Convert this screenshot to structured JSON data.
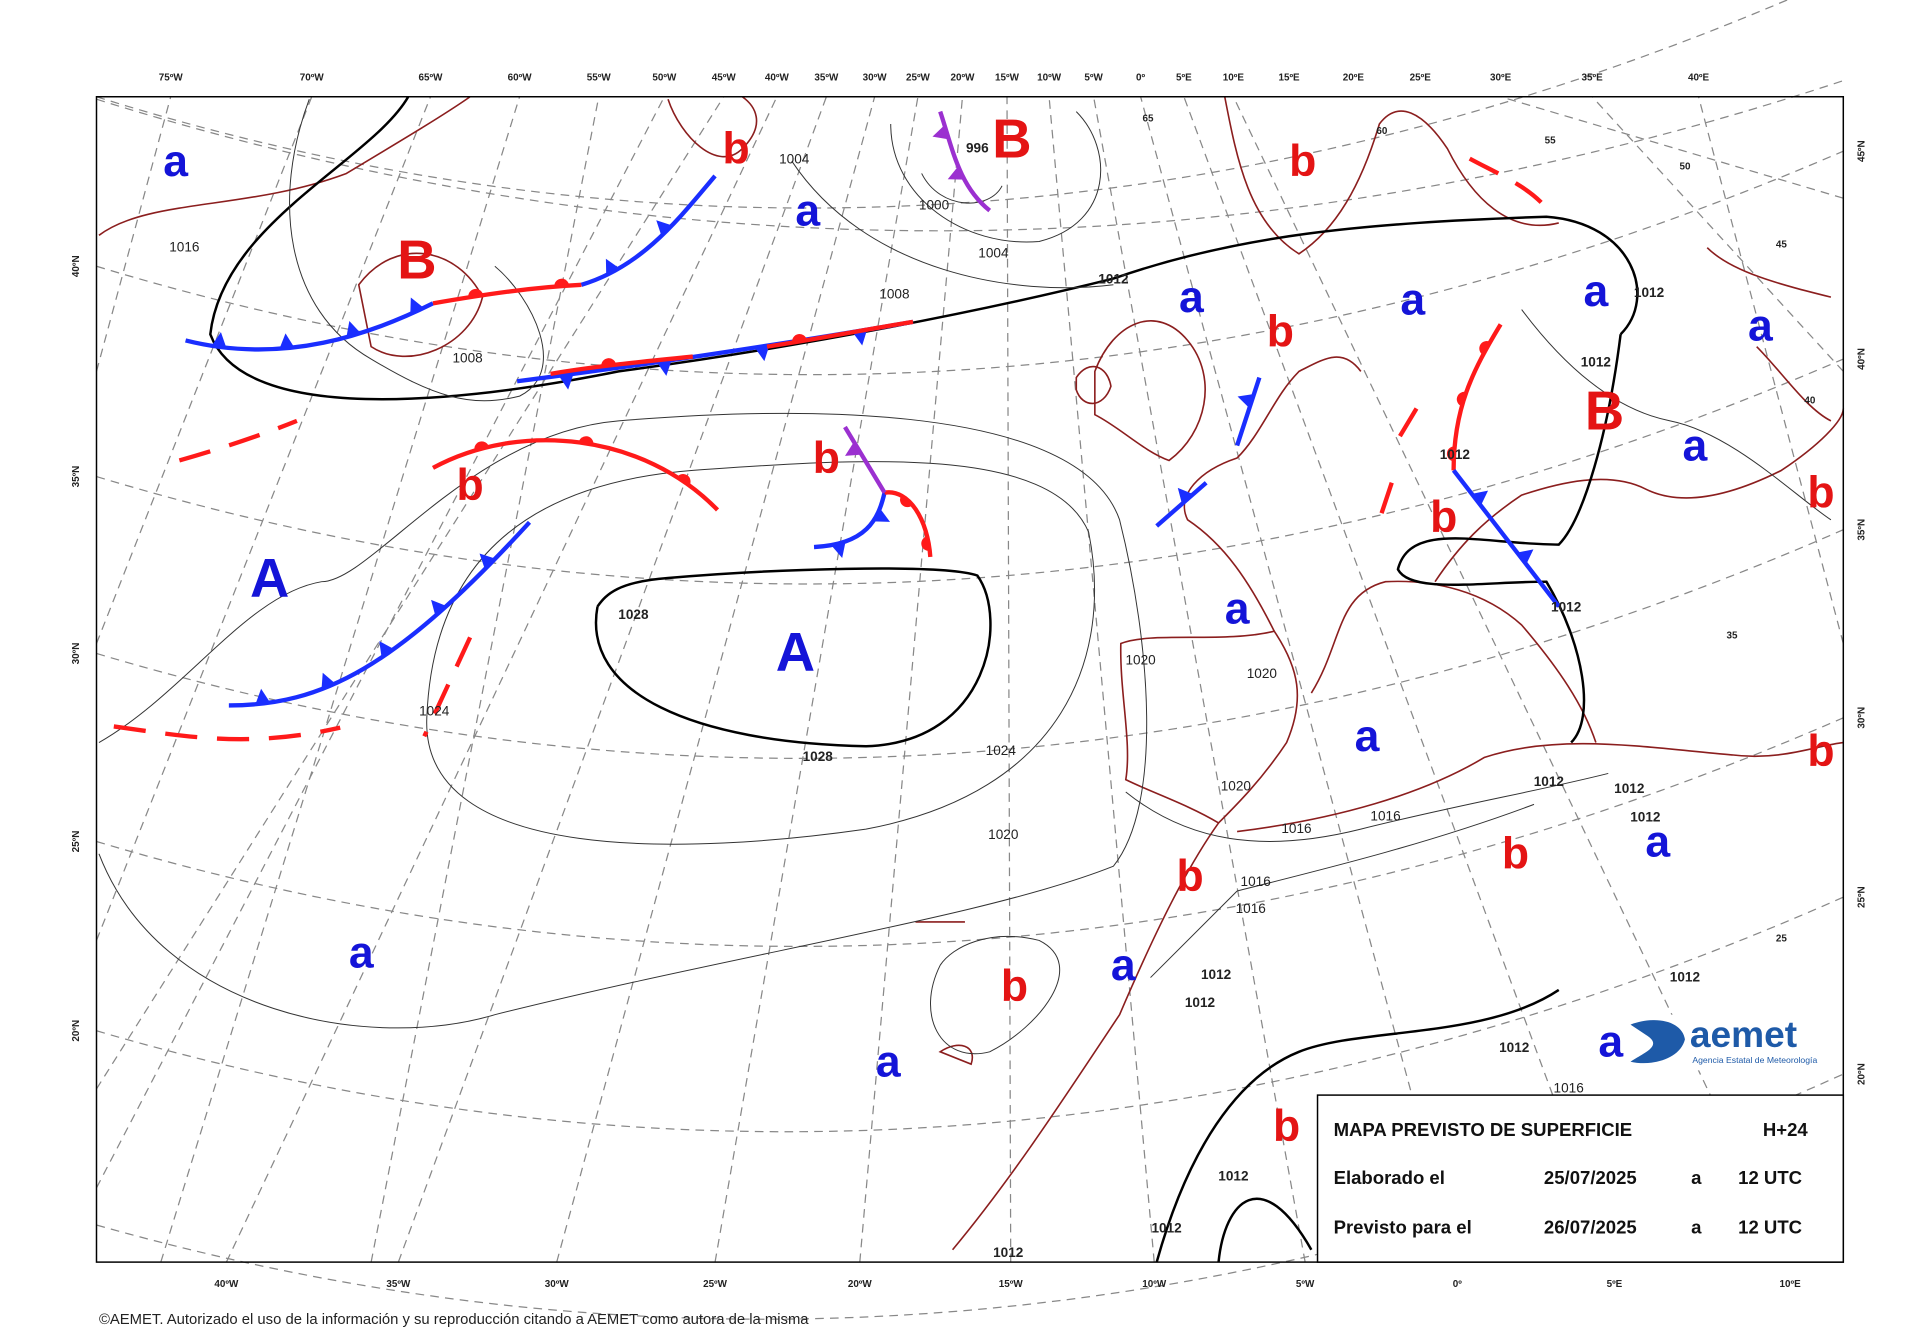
{
  "map": {
    "top_longitudes": [
      "75ºW",
      "70ºW",
      "65ºW",
      "60ºW",
      "55ºW",
      "50ºW",
      "45ºW",
      "40ºW",
      "35ºW",
      "30ºW",
      "25ºW",
      "20ºW",
      "15ºW",
      "10ºW",
      "5ºW",
      "0º",
      "5ºE",
      "10ºE",
      "15ºE",
      "20ºE",
      "25ºE",
      "30ºE",
      "35ºE",
      "40ºE"
    ],
    "bottom_longitudes": [
      "40ºW",
      "35ºW",
      "30ºW",
      "25ºW",
      "20ºW",
      "15ºW",
      "10ºW",
      "5ºW",
      "0º",
      "5ºE",
      "10ºE"
    ],
    "left_latitudes": [
      "40ºN",
      "35ºN",
      "30ºN",
      "25ºN",
      "20ºN"
    ],
    "right_latitudes": [
      "45ºN",
      "40ºN",
      "35ºN",
      "30ºN",
      "25ºN",
      "20ºN"
    ],
    "inner_latitudes": [
      "65",
      "60",
      "55",
      "50",
      "45",
      "40",
      "35",
      "25"
    ],
    "pressure_systems": [
      "a",
      "b",
      "B",
      "a",
      "B",
      "b",
      "a",
      "a",
      "a",
      "a",
      "b",
      "B",
      "b",
      "b",
      "a",
      "b",
      "b",
      "A",
      "A",
      "a",
      "a",
      "b",
      "b",
      "a",
      "b",
      "a",
      "a",
      "b",
      "a",
      "a",
      "b"
    ],
    "isobar_labels": [
      "1028",
      "1028",
      "1024",
      "1024",
      "1020",
      "1020",
      "1020",
      "1020",
      "1016",
      "1012",
      "1008",
      "1008",
      "1004",
      "1004",
      "1000",
      "996",
      "1012",
      "1012",
      "1012",
      "1012",
      "1012",
      "1012",
      "1012",
      "1012",
      "1012",
      "1012",
      "1012",
      "1016",
      "1016",
      "1016",
      "1016",
      "1012",
      "1016",
      "1012",
      "1012"
    ],
    "high_color": "#1414d8",
    "low_color": "#e41414"
  },
  "legend": {
    "title": "MAPA PREVISTO DE SUPERFICIE",
    "lead_time": "H+24",
    "rows": [
      [
        "Elaborado el",
        "25/07/2025",
        "a",
        "12 UTC"
      ],
      [
        "Previsto para el",
        "26/07/2025",
        "a",
        "12 UTC"
      ]
    ]
  },
  "logo": {
    "name": "aemet",
    "subtitle": "Agencia Estatal de Meteorología"
  },
  "footer": "©AEMET. Autorizado el uso de la información y su reproducción citando a AEMET como autora de la misma"
}
